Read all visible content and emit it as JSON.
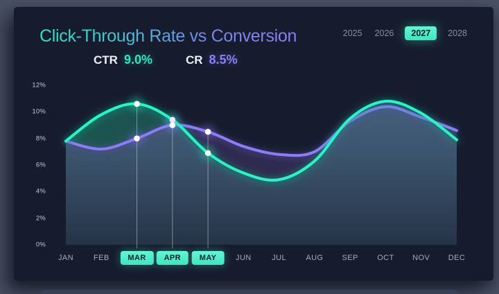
{
  "window": {
    "outer_bg": "#495064",
    "panel_bg": "#161c2e"
  },
  "header": {
    "title": "Click-Through Rate vs Conversion",
    "title_gradient": [
      "#2ce6c2",
      "#6f8ce8",
      "#8f7cf8"
    ],
    "stats": [
      {
        "label": "CTR",
        "value": "9.0%",
        "color": "#2de8bd"
      },
      {
        "label": "CR",
        "value": "8.5%",
        "color": "#8f7ef8"
      }
    ],
    "years": [
      {
        "label": "2025",
        "selected": false
      },
      {
        "label": "2026",
        "selected": false
      },
      {
        "label": "2027",
        "selected": true
      },
      {
        "label": "2028",
        "selected": false
      }
    ]
  },
  "chart_data": {
    "type": "line",
    "title": "Click-Through Rate vs Conversion",
    "xlabel": "",
    "ylabel": "",
    "ylim": [
      0,
      12
    ],
    "grid": false,
    "legend_position": "none",
    "y_ticks": [
      "12%",
      "10%",
      "8%",
      "6%",
      "4%",
      "2%",
      "0%"
    ],
    "categories": [
      "JAN",
      "FEB",
      "MAR",
      "APR",
      "MAY",
      "JUN",
      "JUL",
      "AUG",
      "SEP",
      "OCT",
      "NOV",
      "DEC"
    ],
    "highlighted_categories": [
      "MAR",
      "APR",
      "MAY"
    ],
    "series": [
      {
        "name": "CTR",
        "color": "#2ff2c5",
        "values": [
          7.8,
          9.8,
          10.6,
          9.4,
          6.9,
          5.4,
          4.9,
          6.3,
          9.5,
          10.8,
          9.9,
          7.9
        ]
      },
      {
        "name": "CR",
        "color": "#8d7cf7",
        "values": [
          7.8,
          7.2,
          8.0,
          9.0,
          8.5,
          7.4,
          6.8,
          7.0,
          9.3,
          10.4,
          9.6,
          8.6
        ]
      }
    ],
    "highlight_points": [
      {
        "month": "MAR",
        "ctr": 10.6,
        "cr": 8.0
      },
      {
        "month": "APR",
        "ctr": 9.4,
        "cr": 9.0
      },
      {
        "month": "MAY",
        "ctr": 6.9,
        "cr": 8.5
      }
    ]
  }
}
